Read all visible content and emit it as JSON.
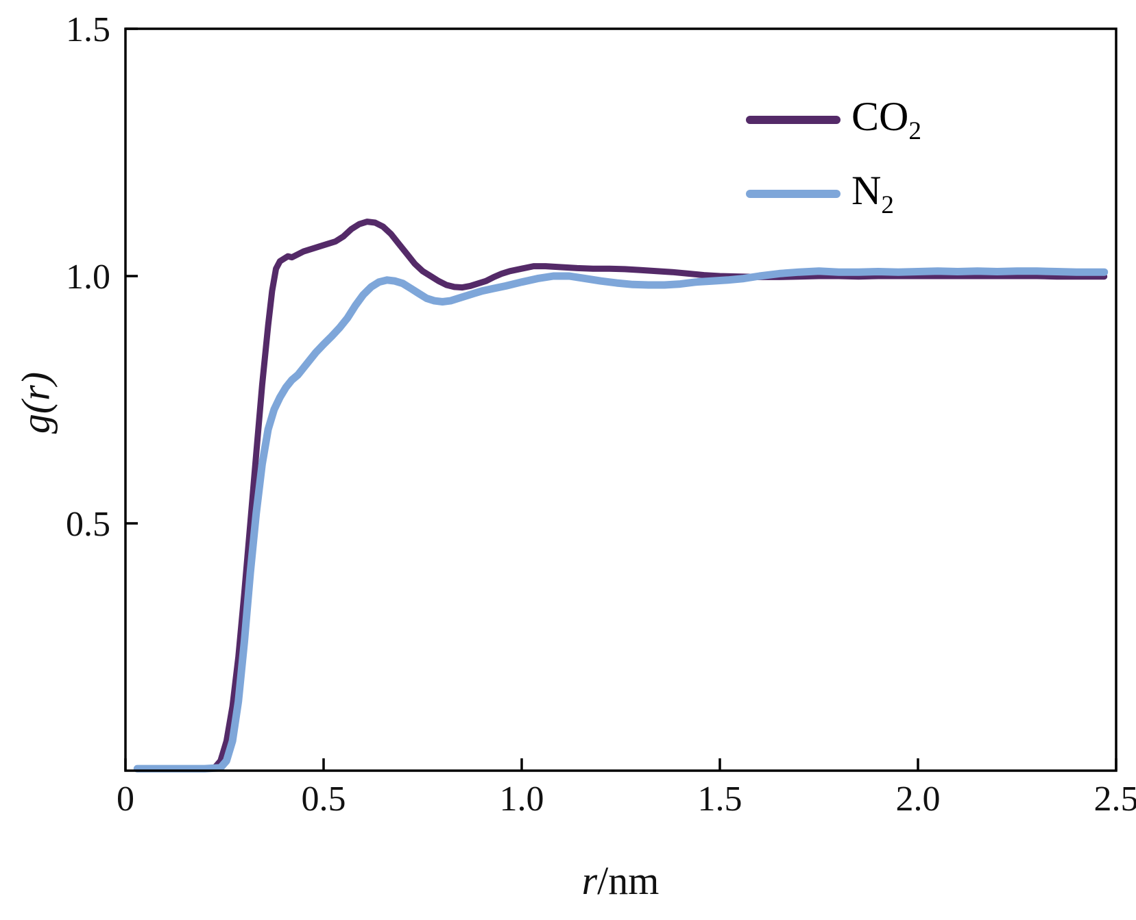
{
  "chart_data": {
    "type": "line",
    "title": "",
    "xlabel_italic": "r",
    "xlabel_rest": "/nm",
    "ylabel": "g(r)",
    "xlim": [
      0,
      2.5
    ],
    "ylim": [
      0,
      1.5
    ],
    "grid": false,
    "legend_position": "top-right",
    "frame_color": "#000000",
    "xticks": {
      "values": [
        0,
        0.5,
        1.0,
        1.5,
        2.0,
        2.5
      ],
      "labels": [
        "0",
        "0.5",
        "1.0",
        "1.5",
        "2.0",
        "2.5"
      ]
    },
    "yticks": {
      "values": [
        0.5,
        1.0,
        1.5
      ],
      "labels": [
        "0.5",
        "1.0",
        "1.5"
      ]
    },
    "series": [
      {
        "name": "CO2",
        "label": "CO",
        "label_sub": "2",
        "color": "#542a68",
        "line_width": 9,
        "points": [
          [
            0.03,
            0.004
          ],
          [
            0.1,
            0.004
          ],
          [
            0.15,
            0.004
          ],
          [
            0.2,
            0.004
          ],
          [
            0.225,
            0.006
          ],
          [
            0.24,
            0.02
          ],
          [
            0.255,
            0.06
          ],
          [
            0.27,
            0.13
          ],
          [
            0.285,
            0.23
          ],
          [
            0.3,
            0.36
          ],
          [
            0.315,
            0.5
          ],
          [
            0.33,
            0.64
          ],
          [
            0.345,
            0.78
          ],
          [
            0.36,
            0.9
          ],
          [
            0.37,
            0.97
          ],
          [
            0.38,
            1.015
          ],
          [
            0.39,
            1.03
          ],
          [
            0.4,
            1.035
          ],
          [
            0.41,
            1.04
          ],
          [
            0.42,
            1.038
          ],
          [
            0.43,
            1.042
          ],
          [
            0.45,
            1.05
          ],
          [
            0.47,
            1.055
          ],
          [
            0.49,
            1.06
          ],
          [
            0.51,
            1.065
          ],
          [
            0.53,
            1.07
          ],
          [
            0.55,
            1.08
          ],
          [
            0.57,
            1.095
          ],
          [
            0.59,
            1.105
          ],
          [
            0.61,
            1.11
          ],
          [
            0.63,
            1.108
          ],
          [
            0.65,
            1.1
          ],
          [
            0.67,
            1.085
          ],
          [
            0.69,
            1.065
          ],
          [
            0.71,
            1.045
          ],
          [
            0.73,
            1.025
          ],
          [
            0.75,
            1.01
          ],
          [
            0.77,
            1.0
          ],
          [
            0.79,
            0.99
          ],
          [
            0.81,
            0.982
          ],
          [
            0.83,
            0.978
          ],
          [
            0.85,
            0.977
          ],
          [
            0.87,
            0.98
          ],
          [
            0.89,
            0.985
          ],
          [
            0.91,
            0.99
          ],
          [
            0.93,
            0.998
          ],
          [
            0.95,
            1.005
          ],
          [
            0.97,
            1.01
          ],
          [
            1.0,
            1.015
          ],
          [
            1.03,
            1.02
          ],
          [
            1.06,
            1.02
          ],
          [
            1.1,
            1.018
          ],
          [
            1.14,
            1.016
          ],
          [
            1.18,
            1.015
          ],
          [
            1.22,
            1.015
          ],
          [
            1.26,
            1.014
          ],
          [
            1.3,
            1.012
          ],
          [
            1.34,
            1.01
          ],
          [
            1.38,
            1.008
          ],
          [
            1.42,
            1.005
          ],
          [
            1.46,
            1.002
          ],
          [
            1.5,
            1.0
          ],
          [
            1.55,
            0.999
          ],
          [
            1.6,
            0.998
          ],
          [
            1.65,
            0.998
          ],
          [
            1.7,
            0.999
          ],
          [
            1.75,
            1.0
          ],
          [
            1.8,
            1.0
          ],
          [
            1.85,
            0.999
          ],
          [
            1.9,
            1.0
          ],
          [
            1.95,
            1.0
          ],
          [
            2.0,
            1.0
          ],
          [
            2.05,
            1.0
          ],
          [
            2.1,
            1.0
          ],
          [
            2.15,
            1.0
          ],
          [
            2.2,
            1.0
          ],
          [
            2.25,
            1.0
          ],
          [
            2.3,
            1.0
          ],
          [
            2.35,
            0.999
          ],
          [
            2.4,
            0.999
          ],
          [
            2.45,
            0.999
          ],
          [
            2.47,
            0.999
          ]
        ]
      },
      {
        "name": "N2",
        "label": "N",
        "label_sub": "2",
        "color": "#7ea6d9",
        "line_width": 11,
        "points": [
          [
            0.03,
            0.004
          ],
          [
            0.1,
            0.004
          ],
          [
            0.2,
            0.004
          ],
          [
            0.24,
            0.006
          ],
          [
            0.255,
            0.02
          ],
          [
            0.27,
            0.06
          ],
          [
            0.285,
            0.14
          ],
          [
            0.3,
            0.26
          ],
          [
            0.315,
            0.4
          ],
          [
            0.33,
            0.52
          ],
          [
            0.345,
            0.62
          ],
          [
            0.36,
            0.69
          ],
          [
            0.375,
            0.73
          ],
          [
            0.39,
            0.755
          ],
          [
            0.405,
            0.775
          ],
          [
            0.42,
            0.79
          ],
          [
            0.435,
            0.8
          ],
          [
            0.45,
            0.815
          ],
          [
            0.465,
            0.83
          ],
          [
            0.48,
            0.845
          ],
          [
            0.5,
            0.862
          ],
          [
            0.52,
            0.878
          ],
          [
            0.54,
            0.895
          ],
          [
            0.56,
            0.915
          ],
          [
            0.58,
            0.94
          ],
          [
            0.6,
            0.962
          ],
          [
            0.62,
            0.978
          ],
          [
            0.64,
            0.988
          ],
          [
            0.66,
            0.992
          ],
          [
            0.68,
            0.99
          ],
          [
            0.7,
            0.985
          ],
          [
            0.72,
            0.975
          ],
          [
            0.74,
            0.965
          ],
          [
            0.76,
            0.955
          ],
          [
            0.78,
            0.95
          ],
          [
            0.8,
            0.948
          ],
          [
            0.82,
            0.95
          ],
          [
            0.84,
            0.955
          ],
          [
            0.86,
            0.96
          ],
          [
            0.88,
            0.965
          ],
          [
            0.9,
            0.97
          ],
          [
            0.93,
            0.975
          ],
          [
            0.96,
            0.98
          ],
          [
            1.0,
            0.988
          ],
          [
            1.04,
            0.995
          ],
          [
            1.08,
            1.0
          ],
          [
            1.12,
            1.0
          ],
          [
            1.16,
            0.995
          ],
          [
            1.2,
            0.99
          ],
          [
            1.24,
            0.986
          ],
          [
            1.28,
            0.983
          ],
          [
            1.32,
            0.982
          ],
          [
            1.36,
            0.982
          ],
          [
            1.4,
            0.984
          ],
          [
            1.44,
            0.988
          ],
          [
            1.48,
            0.99
          ],
          [
            1.52,
            0.992
          ],
          [
            1.56,
            0.995
          ],
          [
            1.6,
            1.0
          ],
          [
            1.65,
            1.005
          ],
          [
            1.7,
            1.008
          ],
          [
            1.75,
            1.01
          ],
          [
            1.8,
            1.008
          ],
          [
            1.85,
            1.008
          ],
          [
            1.9,
            1.009
          ],
          [
            1.95,
            1.008
          ],
          [
            2.0,
            1.009
          ],
          [
            2.05,
            1.01
          ],
          [
            2.1,
            1.009
          ],
          [
            2.15,
            1.01
          ],
          [
            2.2,
            1.009
          ],
          [
            2.25,
            1.01
          ],
          [
            2.3,
            1.01
          ],
          [
            2.35,
            1.009
          ],
          [
            2.4,
            1.008
          ],
          [
            2.45,
            1.008
          ],
          [
            2.47,
            1.008
          ]
        ]
      }
    ]
  }
}
